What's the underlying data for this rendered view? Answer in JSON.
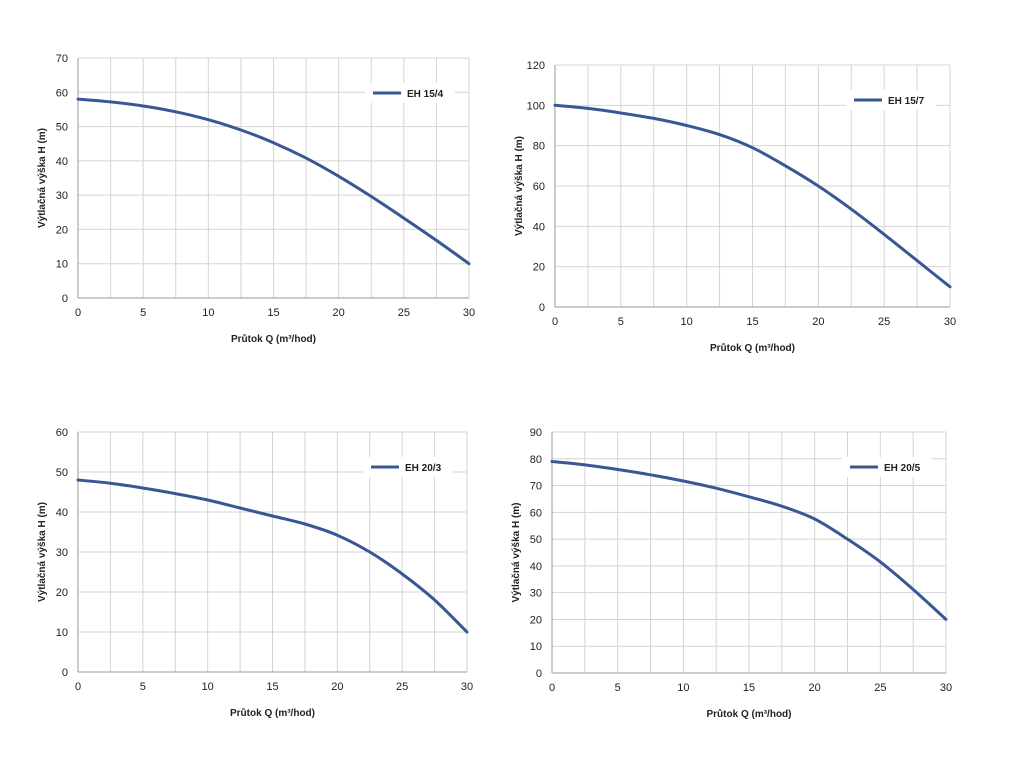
{
  "colors": {
    "curve": "#3a5795",
    "grid": "#d4d4d4",
    "axis": "#9a9a9a",
    "background": "#ffffff"
  },
  "chart_data": [
    {
      "type": "line",
      "xlabel": "Průtok Q (m³/hod)",
      "ylabel": "Výtlačná výška H (m)",
      "xlim": [
        0,
        30
      ],
      "ylim": [
        0,
        70
      ],
      "xticks": [
        0,
        5,
        10,
        15,
        20,
        25,
        30
      ],
      "yticks": [
        0,
        10,
        20,
        30,
        40,
        50,
        60,
        70
      ],
      "grid": true,
      "legend_position": "top-right",
      "series": [
        {
          "name": "EH 15/4",
          "x": [
            0,
            2.5,
            5,
            7.5,
            10,
            12.5,
            15,
            17.5,
            20,
            22.5,
            25,
            27.5,
            30
          ],
          "y": [
            58,
            57.2,
            56,
            54.3,
            52,
            49,
            45.3,
            40.8,
            35.5,
            29.6,
            23.3,
            16.8,
            10
          ]
        }
      ]
    },
    {
      "type": "line",
      "xlabel": "Průtok Q (m³/hod)",
      "ylabel": "Výtlačná výška H (m)",
      "xlim": [
        0,
        30
      ],
      "ylim": [
        0,
        120
      ],
      "xticks": [
        0,
        5,
        10,
        15,
        20,
        25,
        30
      ],
      "yticks": [
        0,
        20,
        40,
        60,
        80,
        100,
        120
      ],
      "grid": true,
      "legend_position": "top-right",
      "series": [
        {
          "name": "EH 15/7",
          "x": [
            0,
            2.5,
            5,
            7.5,
            10,
            12.5,
            15,
            17.5,
            20,
            22.5,
            25,
            27.5,
            30
          ],
          "y": [
            100,
            98.5,
            96.2,
            93.5,
            90,
            85.5,
            79,
            70,
            60,
            48.5,
            36,
            23,
            10
          ]
        }
      ]
    },
    {
      "type": "line",
      "xlabel": "Průtok Q (m³/hod)",
      "ylabel": "Výtlačná výška H (m)",
      "xlim": [
        0,
        30
      ],
      "ylim": [
        0,
        60
      ],
      "xticks": [
        0,
        5,
        10,
        15,
        20,
        25,
        30
      ],
      "yticks": [
        0,
        10,
        20,
        30,
        40,
        50,
        60
      ],
      "grid": true,
      "legend_position": "top-right",
      "series": [
        {
          "name": "EH 20/3",
          "x": [
            0,
            2.5,
            5,
            7.5,
            10,
            12.5,
            15,
            17.5,
            20,
            22.5,
            25,
            27.5,
            30
          ],
          "y": [
            48,
            47.2,
            46,
            44.6,
            43,
            41,
            39,
            37,
            34.2,
            30,
            24.5,
            18,
            10
          ]
        }
      ]
    },
    {
      "type": "line",
      "xlabel": "Průtok Q (m³/hod)",
      "ylabel": "Výtlačná výška H (m)",
      "xlim": [
        0,
        30
      ],
      "ylim": [
        0,
        90
      ],
      "xticks": [
        0,
        5,
        10,
        15,
        20,
        25,
        30
      ],
      "yticks": [
        0,
        10,
        20,
        30,
        40,
        50,
        60,
        70,
        80,
        90
      ],
      "grid": true,
      "legend_position": "top-right",
      "series": [
        {
          "name": "EH 20/5",
          "x": [
            0,
            2.5,
            5,
            7.5,
            10,
            12.5,
            15,
            17.5,
            20,
            22.5,
            25,
            27.5,
            30
          ],
          "y": [
            79,
            77.7,
            76,
            74,
            71.7,
            69,
            65.8,
            62.3,
            57.5,
            50,
            41.5,
            31.2,
            20
          ]
        }
      ]
    }
  ]
}
